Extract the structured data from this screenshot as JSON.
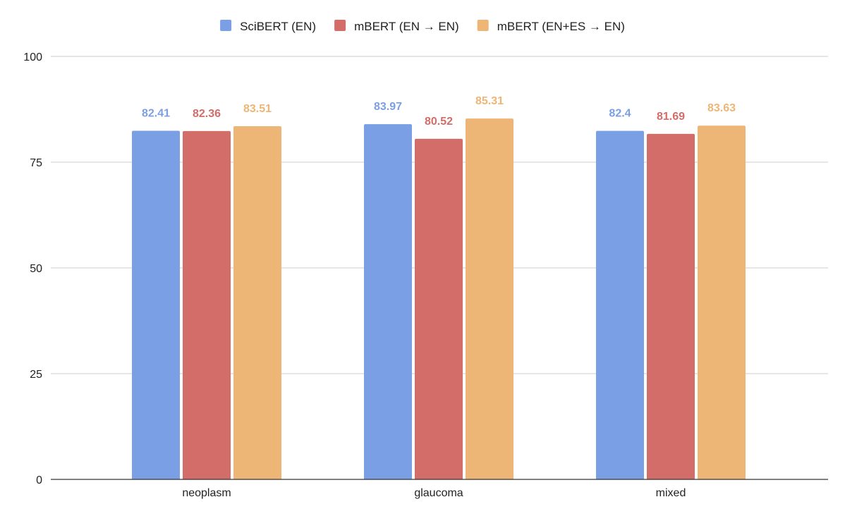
{
  "chart_data": {
    "type": "bar",
    "title": "",
    "xlabel": "",
    "ylabel": "",
    "ylim": [
      0,
      100
    ],
    "yticks": [
      "0",
      "25",
      "50",
      "75",
      "100"
    ],
    "grid": true,
    "legend_position": "top-center",
    "categories": [
      "neoplasm",
      "glaucoma",
      "mixed"
    ],
    "series": [
      {
        "name": "SciBERT (EN)",
        "color": "#7b9fe5",
        "values": [
          82.41,
          83.97,
          82.4
        ],
        "labels": [
          "82.41",
          "83.97",
          "82.4"
        ]
      },
      {
        "name": "mBERT (EN → EN)",
        "color": "#d36d6a",
        "values": [
          82.36,
          80.52,
          81.69
        ],
        "labels": [
          "82.36",
          "80.52",
          "81.69"
        ]
      },
      {
        "name": "mBERT (EN+ES → EN)",
        "color": "#edb676",
        "values": [
          83.51,
          85.31,
          83.63
        ],
        "labels": [
          "83.51",
          "85.31",
          "83.63"
        ]
      }
    ]
  }
}
